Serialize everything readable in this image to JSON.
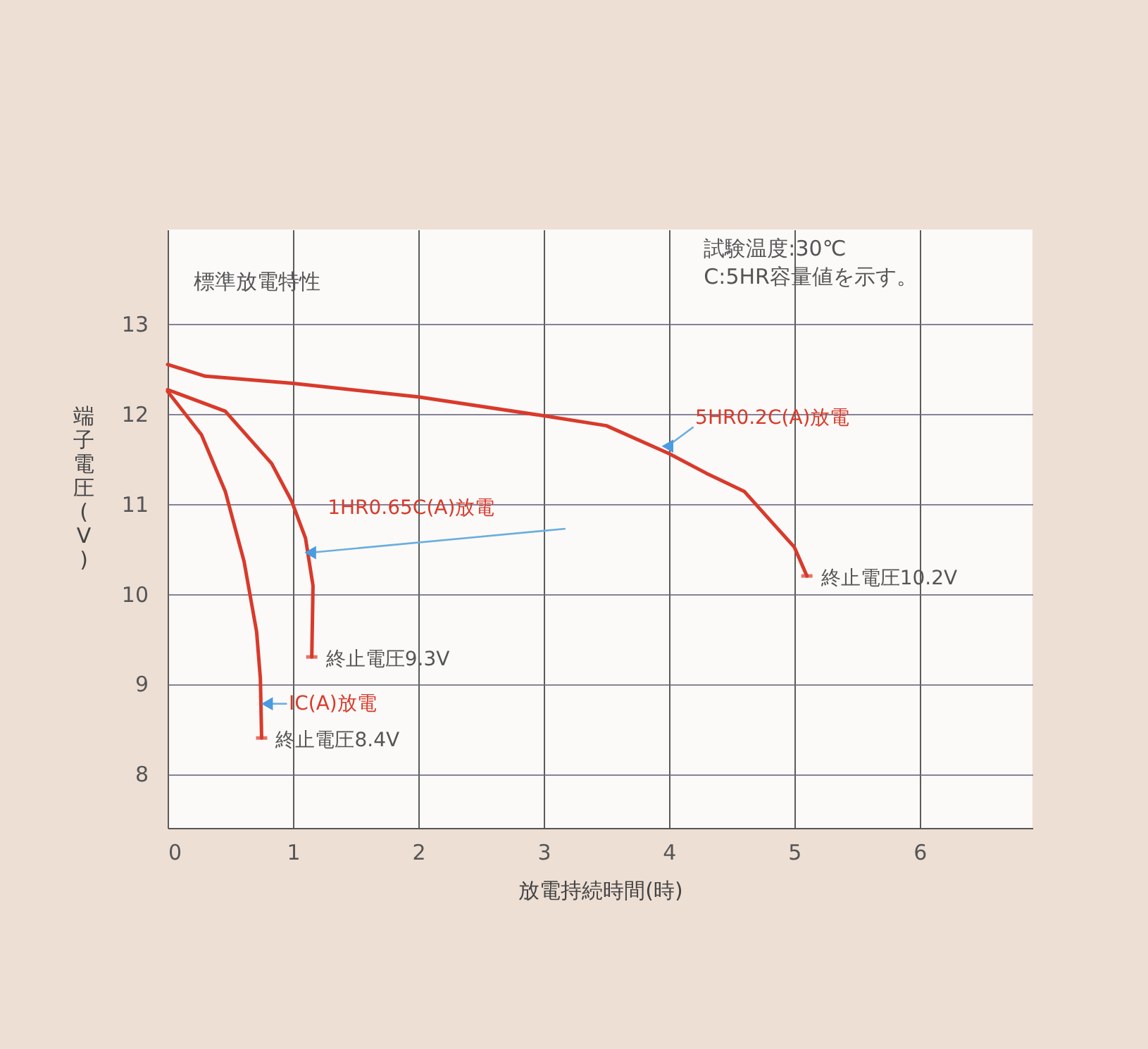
{
  "chart_data": {
    "type": "line",
    "title": "標準放電特性",
    "xlabel": "放電持続時間(時)",
    "ylabel": "端子電圧(V)",
    "xlim": [
      0,
      6.9
    ],
    "xticks": [
      0,
      1,
      2,
      3,
      4,
      5,
      6
    ],
    "ylim": [
      7.4,
      14.05
    ],
    "yticks": [
      8,
      9,
      10,
      11,
      12,
      13
    ],
    "grid": true,
    "legend": false,
    "series": [
      {
        "name": "5HR0.2C(A)放電",
        "color": "#d93a2b",
        "x": [
          0,
          0.3,
          1,
          2,
          3,
          3.5,
          4,
          4.3,
          4.6,
          4.8,
          5,
          5.1
        ],
        "values": [
          12.55,
          12.42,
          12.34,
          12.19,
          11.98,
          11.87,
          11.56,
          11.34,
          11.14,
          10.83,
          10.52,
          10.2
        ]
      },
      {
        "name": "1HR0.65C(A)放電",
        "color": "#d93a2b",
        "x": [
          0,
          0.46,
          0.83,
          0.99,
          1.1,
          1.16,
          1.15
        ],
        "values": [
          12.27,
          12.03,
          11.45,
          11.03,
          10.62,
          10.09,
          9.3
        ]
      },
      {
        "name": "IC(A)放電",
        "color": "#d93a2b",
        "x": [
          0,
          0.27,
          0.46,
          0.61,
          0.71,
          0.74,
          0.75
        ],
        "values": [
          12.25,
          11.77,
          11.14,
          10.36,
          9.58,
          9.06,
          8.4
        ]
      }
    ],
    "annotations": [
      "試験温度:30℃\nC:5HR容量値を示す。",
      {
        "text": "終止電圧10.2V",
        "x": 5.1,
        "y": 10.2
      },
      {
        "text": "終止電圧9.3V",
        "x": 1.15,
        "y": 9.3
      },
      {
        "text": "終止電圧8.4V",
        "x": 0.75,
        "y": 8.4
      }
    ]
  }
}
